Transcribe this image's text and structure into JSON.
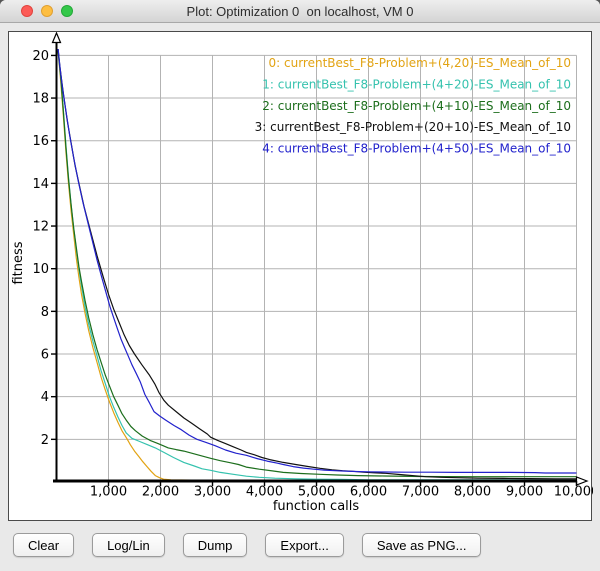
{
  "window": {
    "title": "Plot: Optimization 0  on localhost, VM 0",
    "traffic_lights": [
      "close",
      "minimize",
      "zoom"
    ]
  },
  "toolbar": {
    "buttons": [
      "Clear",
      "Log/Lin",
      "Dump",
      "Export...",
      "Save as PNG..."
    ]
  },
  "chart_data": {
    "type": "line",
    "title": "",
    "xlabel": "function calls",
    "ylabel": "fitness",
    "xlim": [
      0,
      10200
    ],
    "ylim": [
      0,
      20.6
    ],
    "grid": true,
    "grid_color": "#b3b3b3",
    "axis_color": "#000000",
    "background": "#ffffff",
    "legend_position": "top-right",
    "x_tick_values": [
      1000,
      2000,
      3000,
      4000,
      5000,
      6000,
      7000,
      8000,
      9000,
      10000
    ],
    "x_tick_labels": [
      "1,000",
      "2,000",
      "3,000",
      "4,000",
      "5,000",
      "6,000",
      "7,000",
      "8,000",
      "9,000",
      "10,000"
    ],
    "y_tick_values": [
      2,
      4,
      6,
      8,
      10,
      12,
      14,
      16,
      18,
      20
    ],
    "y_tick_labels": [
      "2",
      "4",
      "6",
      "8",
      "10",
      "12",
      "14",
      "16",
      "18",
      "20"
    ],
    "series": [
      {
        "name": "0: currentBest_F8-Problem+(4,20)-ES_Mean_of_10",
        "color": "#e2a313",
        "points": [
          [
            30,
            20.2
          ],
          [
            80,
            18.8
          ],
          [
            130,
            17.2
          ],
          [
            180,
            15.5
          ],
          [
            230,
            14.0
          ],
          [
            280,
            12.7
          ],
          [
            330,
            11.6
          ],
          [
            380,
            10.5
          ],
          [
            430,
            9.6
          ],
          [
            480,
            8.8
          ],
          [
            550,
            7.9
          ],
          [
            620,
            7.1
          ],
          [
            700,
            6.3
          ],
          [
            780,
            5.6
          ],
          [
            860,
            4.9
          ],
          [
            940,
            4.3
          ],
          [
            1020,
            3.75
          ],
          [
            1100,
            3.25
          ],
          [
            1180,
            2.8
          ],
          [
            1260,
            2.4
          ],
          [
            1350,
            2.05
          ],
          [
            1420,
            1.75
          ],
          [
            1500,
            1.45
          ],
          [
            1580,
            1.2
          ],
          [
            1660,
            0.95
          ],
          [
            1740,
            0.72
          ],
          [
            1820,
            0.5
          ],
          [
            1900,
            0.3
          ],
          [
            1980,
            0.2
          ],
          [
            2060,
            0.13
          ],
          [
            2200,
            0.1
          ],
          [
            2600,
            0.09
          ],
          [
            3500,
            0.08
          ],
          [
            5600,
            0.08
          ],
          [
            7000,
            0.07
          ],
          [
            10000,
            0.07
          ]
        ]
      },
      {
        "name": "1: currentBest_F8-Problem+(4+20)-ES_Mean_of_10",
        "color": "#35c2ae",
        "points": [
          [
            30,
            20.2
          ],
          [
            80,
            19.0
          ],
          [
            130,
            17.5
          ],
          [
            180,
            15.8
          ],
          [
            230,
            14.3
          ],
          [
            280,
            13.0
          ],
          [
            330,
            11.9
          ],
          [
            380,
            10.9
          ],
          [
            430,
            10.0
          ],
          [
            480,
            9.2
          ],
          [
            550,
            8.2
          ],
          [
            620,
            7.4
          ],
          [
            700,
            6.6
          ],
          [
            780,
            5.9
          ],
          [
            860,
            5.2
          ],
          [
            940,
            4.6
          ],
          [
            1020,
            4.0
          ],
          [
            1100,
            3.5
          ],
          [
            1180,
            3.05
          ],
          [
            1260,
            2.65
          ],
          [
            1340,
            2.3
          ],
          [
            1450,
            2.05
          ],
          [
            1600,
            1.9
          ],
          [
            1750,
            1.75
          ],
          [
            1900,
            1.6
          ],
          [
            2065,
            1.39
          ],
          [
            2250,
            1.15
          ],
          [
            2448,
            0.92
          ],
          [
            2650,
            0.75
          ],
          [
            2800,
            0.62
          ],
          [
            2964,
            0.55
          ],
          [
            3150,
            0.45
          ],
          [
            3400,
            0.36
          ],
          [
            3652,
            0.27
          ],
          [
            3900,
            0.22
          ],
          [
            4200,
            0.18
          ],
          [
            4600,
            0.15
          ],
          [
            5000,
            0.13
          ],
          [
            5500,
            0.12
          ],
          [
            6000,
            0.1
          ],
          [
            7000,
            0.1
          ],
          [
            8000,
            0.1
          ],
          [
            9000,
            0.1
          ],
          [
            10000,
            0.1
          ]
        ]
      },
      {
        "name": "2: currentBest_F8-Problem+(4+10)-ES_Mean_of_10",
        "color": "#1c6e1c",
        "points": [
          [
            30,
            20.2
          ],
          [
            80,
            19.0
          ],
          [
            130,
            17.4
          ],
          [
            180,
            15.7
          ],
          [
            230,
            14.2
          ],
          [
            280,
            13.0
          ],
          [
            330,
            11.9
          ],
          [
            380,
            11.0
          ],
          [
            430,
            10.1
          ],
          [
            480,
            9.4
          ],
          [
            550,
            8.5
          ],
          [
            620,
            7.7
          ],
          [
            700,
            6.9
          ],
          [
            780,
            6.2
          ],
          [
            860,
            5.6
          ],
          [
            940,
            5.0
          ],
          [
            1020,
            4.5
          ],
          [
            1100,
            4.0
          ],
          [
            1180,
            3.6
          ],
          [
            1260,
            3.2
          ],
          [
            1340,
            2.9
          ],
          [
            1430,
            2.6
          ],
          [
            1520,
            2.4
          ],
          [
            1650,
            2.15
          ],
          [
            1800,
            1.95
          ],
          [
            1935,
            1.82
          ],
          [
            2050,
            1.7
          ],
          [
            2150,
            1.6
          ],
          [
            2300,
            1.52
          ],
          [
            2450,
            1.45
          ],
          [
            2600,
            1.35
          ],
          [
            2750,
            1.25
          ],
          [
            2964,
            1.11
          ],
          [
            3150,
            1.0
          ],
          [
            3350,
            0.9
          ],
          [
            3500,
            0.82
          ],
          [
            3650,
            0.7
          ],
          [
            3900,
            0.6
          ],
          [
            4150,
            0.52
          ],
          [
            4360,
            0.45
          ],
          [
            4700,
            0.4
          ],
          [
            5067,
            0.36
          ],
          [
            5400,
            0.33
          ],
          [
            5800,
            0.3
          ],
          [
            6300,
            0.28
          ],
          [
            7000,
            0.26
          ],
          [
            8000,
            0.25
          ],
          [
            9000,
            0.25
          ],
          [
            10000,
            0.25
          ]
        ]
      },
      {
        "name": "3: currentBest_F8-Problem+(20+10)-ES_Mean_of_10",
        "color": "#111111",
        "points": [
          [
            30,
            20.3
          ],
          [
            60,
            19.6
          ],
          [
            100,
            18.8
          ],
          [
            150,
            17.9
          ],
          [
            210,
            16.9
          ],
          [
            280,
            15.9
          ],
          [
            360,
            14.8
          ],
          [
            440,
            13.9
          ],
          [
            530,
            12.9
          ],
          [
            650,
            11.8
          ],
          [
            780,
            10.6
          ],
          [
            900,
            9.6
          ],
          [
            1000,
            8.8
          ],
          [
            1100,
            8.1
          ],
          [
            1200,
            7.5
          ],
          [
            1300,
            6.9
          ],
          [
            1400,
            6.4
          ],
          [
            1500,
            6.0
          ],
          [
            1640,
            5.5
          ],
          [
            1790,
            5.0
          ],
          [
            1890,
            4.6
          ],
          [
            1970,
            4.2
          ],
          [
            2065,
            3.83
          ],
          [
            2150,
            3.6
          ],
          [
            2300,
            3.3
          ],
          [
            2450,
            3.0
          ],
          [
            2600,
            2.75
          ],
          [
            2750,
            2.5
          ],
          [
            2900,
            2.25
          ],
          [
            2964,
            2.1
          ],
          [
            3100,
            1.95
          ],
          [
            3250,
            1.8
          ],
          [
            3400,
            1.65
          ],
          [
            3550,
            1.5
          ],
          [
            3652,
            1.39
          ],
          [
            3800,
            1.28
          ],
          [
            3950,
            1.15
          ],
          [
            4100,
            1.05
          ],
          [
            4360,
            0.92
          ],
          [
            4600,
            0.82
          ],
          [
            4850,
            0.72
          ],
          [
            5067,
            0.64
          ],
          [
            5300,
            0.57
          ],
          [
            5500,
            0.53
          ],
          [
            5700,
            0.5
          ],
          [
            5900,
            0.46
          ],
          [
            6100,
            0.43
          ],
          [
            6330,
            0.41
          ],
          [
            6600,
            0.35
          ],
          [
            6900,
            0.29
          ],
          [
            7100,
            0.25
          ],
          [
            7400,
            0.22
          ],
          [
            7700,
            0.2
          ],
          [
            8100,
            0.18
          ],
          [
            8600,
            0.17
          ],
          [
            9100,
            0.16
          ],
          [
            9600,
            0.15
          ],
          [
            10000,
            0.15
          ]
        ]
      },
      {
        "name": "4: currentBest_F8-Problem+(4+50)-ES_Mean_of_10",
        "color": "#2222cc",
        "points": [
          [
            30,
            20.3
          ],
          [
            70,
            19.4
          ],
          [
            120,
            18.4
          ],
          [
            180,
            17.4
          ],
          [
            250,
            16.3
          ],
          [
            330,
            15.2
          ],
          [
            420,
            14.1
          ],
          [
            510,
            13.1
          ],
          [
            600,
            12.2
          ],
          [
            690,
            11.3
          ],
          [
            780,
            10.4
          ],
          [
            870,
            9.6
          ],
          [
            950,
            8.9
          ],
          [
            1030,
            8.2
          ],
          [
            1100,
            7.7
          ],
          [
            1170,
            7.2
          ],
          [
            1240,
            6.7
          ],
          [
            1310,
            6.3
          ],
          [
            1380,
            5.9
          ],
          [
            1450,
            5.5
          ],
          [
            1530,
            5.1
          ],
          [
            1610,
            4.7
          ],
          [
            1700,
            4.1
          ],
          [
            1790,
            3.7
          ],
          [
            1875,
            3.3
          ],
          [
            1980,
            3.1
          ],
          [
            2100,
            2.9
          ],
          [
            2260,
            2.65
          ],
          [
            2400,
            2.45
          ],
          [
            2550,
            2.2
          ],
          [
            2700,
            2.0
          ],
          [
            2870,
            1.86
          ],
          [
            3050,
            1.7
          ],
          [
            3250,
            1.5
          ],
          [
            3450,
            1.35
          ],
          [
            3652,
            1.25
          ],
          [
            3850,
            1.1
          ],
          [
            4050,
            0.98
          ],
          [
            4250,
            0.88
          ],
          [
            4360,
            0.82
          ],
          [
            4550,
            0.72
          ],
          [
            4750,
            0.65
          ],
          [
            4950,
            0.6
          ],
          [
            5150,
            0.56
          ],
          [
            5350,
            0.53
          ],
          [
            5550,
            0.51
          ],
          [
            5750,
            0.49
          ],
          [
            6000,
            0.48
          ],
          [
            6300,
            0.47
          ],
          [
            6700,
            0.46
          ],
          [
            7200,
            0.46
          ],
          [
            7700,
            0.45
          ],
          [
            8200,
            0.45
          ],
          [
            8700,
            0.45
          ],
          [
            9200,
            0.44
          ],
          [
            9400,
            0.42
          ],
          [
            10000,
            0.42
          ]
        ]
      }
    ]
  }
}
